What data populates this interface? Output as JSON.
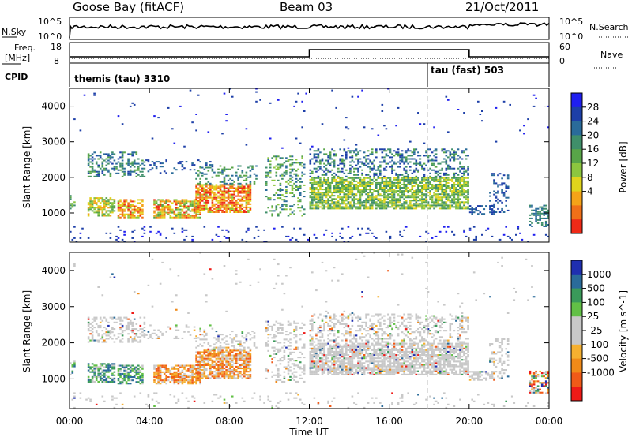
{
  "header": {
    "station": "Goose Bay (fitACF)",
    "beam": "Beam 03",
    "date": "21/Oct/2011"
  },
  "params": {
    "nsky_label": "N.Sky",
    "nsky_ticks": [
      "10^5",
      "10^0"
    ],
    "nsearch_label": "N.Search",
    "freq_label": "Freq.",
    "freq_unit": "[MHz]",
    "freq_ticks": [
      "18",
      "8"
    ],
    "nave_label": "Nave",
    "nave_ticks": [
      "60",
      "0"
    ],
    "cpid_label": "CPID",
    "cpid_modes": [
      {
        "name": "themis (tau) 3310",
        "start_hour": 0
      },
      {
        "name": "tau (fast) 503",
        "start_hour": 18
      }
    ]
  },
  "chart_data": [
    {
      "type": "heatmap",
      "quantity": "Power",
      "ylabel": "Slant Range [km]",
      "ylim": [
        180,
        4500
      ],
      "yticks": [
        "1000",
        "2000",
        "3000",
        "4000"
      ],
      "xlim_hours": [
        0,
        24
      ],
      "xticks": [
        "00:00",
        "04:00",
        "08:00",
        "12:00",
        "16:00",
        "20:00",
        "00:00"
      ],
      "colorbar": {
        "label": "Power [dB]",
        "ticks": [
          "28",
          "24",
          "20",
          "16",
          "12",
          "8",
          "4"
        ],
        "colors": [
          "#1f1ff0",
          "#1d3fa8",
          "#2a6b9a",
          "#3f8f6a",
          "#58a548",
          "#8cc63f",
          "#e0d41c",
          "#f5a318",
          "#f07018",
          "#ef2a17"
        ]
      }
    },
    {
      "type": "heatmap",
      "quantity": "Velocity",
      "ylabel": "Slant Range [km]",
      "ylim": [
        180,
        4500
      ],
      "yticks": [
        "1000",
        "2000",
        "3000",
        "4000"
      ],
      "xlim_hours": [
        0,
        24
      ],
      "xticks": [
        "00:00",
        "04:00",
        "08:00",
        "12:00",
        "16:00",
        "20:00",
        "00:00"
      ],
      "xlabel": "Time UT",
      "colorbar": {
        "label": "Velocity [m s^-1]",
        "ticks": [
          "1000",
          "500",
          "100",
          "25",
          "-25",
          "-100",
          "-500",
          "-1000"
        ],
        "colors": [
          "#1f2fb0",
          "#2a6b9a",
          "#3a9a5a",
          "#62c046",
          "#c8c8c8",
          "#c8c8c8",
          "#f5b030",
          "#f08a18",
          "#f05a18",
          "#ef1a17"
        ]
      }
    }
  ]
}
